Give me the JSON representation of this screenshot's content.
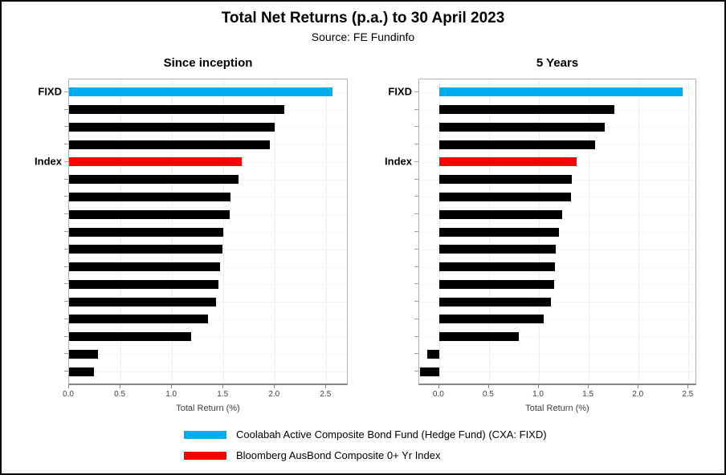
{
  "header": {
    "title": "Total Net Returns (p.a.) to 30 April 2023",
    "subtitle": "Source: FE Fundinfo"
  },
  "colors": {
    "fund_blue": "#00AEEF",
    "index_red": "#FF0000",
    "peer_black": "#000000"
  },
  "chart_data": [
    {
      "type": "bar",
      "orientation": "horizontal",
      "title": "Since inception",
      "xlabel": "Total Return (%)",
      "xlim": [
        0,
        2.7
      ],
      "xticks": [
        0.0,
        0.5,
        1.0,
        1.5,
        2.0,
        2.5
      ],
      "grid": true,
      "bars": [
        {
          "label": "FIXD",
          "value": 2.56,
          "color": "#00AEEF"
        },
        {
          "label": "",
          "value": 2.09,
          "color": "#000000"
        },
        {
          "label": "",
          "value": 2.0,
          "color": "#000000"
        },
        {
          "label": "",
          "value": 1.95,
          "color": "#000000"
        },
        {
          "label": "Index",
          "value": 1.68,
          "color": "#FF0000"
        },
        {
          "label": "",
          "value": 1.65,
          "color": "#000000"
        },
        {
          "label": "",
          "value": 1.57,
          "color": "#000000"
        },
        {
          "label": "",
          "value": 1.56,
          "color": "#000000"
        },
        {
          "label": "",
          "value": 1.5,
          "color": "#000000"
        },
        {
          "label": "",
          "value": 1.49,
          "color": "#000000"
        },
        {
          "label": "",
          "value": 1.47,
          "color": "#000000"
        },
        {
          "label": "",
          "value": 1.45,
          "color": "#000000"
        },
        {
          "label": "",
          "value": 1.43,
          "color": "#000000"
        },
        {
          "label": "",
          "value": 1.35,
          "color": "#000000"
        },
        {
          "label": "",
          "value": 1.19,
          "color": "#000000"
        },
        {
          "label": "",
          "value": 0.28,
          "color": "#000000"
        },
        {
          "label": "",
          "value": 0.24,
          "color": "#000000"
        }
      ]
    },
    {
      "type": "bar",
      "orientation": "horizontal",
      "title": "5 Years",
      "xlabel": "Total Return (%)",
      "xlim": [
        -0.2,
        2.57
      ],
      "xticks": [
        0.0,
        0.5,
        1.0,
        1.5,
        2.0,
        2.5
      ],
      "grid": true,
      "bars": [
        {
          "label": "FIXD",
          "value": 2.44,
          "color": "#00AEEF"
        },
        {
          "label": "",
          "value": 1.76,
          "color": "#000000"
        },
        {
          "label": "",
          "value": 1.66,
          "color": "#000000"
        },
        {
          "label": "",
          "value": 1.56,
          "color": "#000000"
        },
        {
          "label": "Index",
          "value": 1.38,
          "color": "#FF0000"
        },
        {
          "label": "",
          "value": 1.33,
          "color": "#000000"
        },
        {
          "label": "",
          "value": 1.32,
          "color": "#000000"
        },
        {
          "label": "",
          "value": 1.23,
          "color": "#000000"
        },
        {
          "label": "",
          "value": 1.2,
          "color": "#000000"
        },
        {
          "label": "",
          "value": 1.17,
          "color": "#000000"
        },
        {
          "label": "",
          "value": 1.16,
          "color": "#000000"
        },
        {
          "label": "",
          "value": 1.15,
          "color": "#000000"
        },
        {
          "label": "",
          "value": 1.12,
          "color": "#000000"
        },
        {
          "label": "",
          "value": 1.05,
          "color": "#000000"
        },
        {
          "label": "",
          "value": 0.8,
          "color": "#000000"
        },
        {
          "label": "",
          "value": -0.12,
          "color": "#000000"
        },
        {
          "label": "",
          "value": -0.19,
          "color": "#000000"
        }
      ]
    }
  ],
  "legend": {
    "items": [
      {
        "label": "Coolabah Active Composite Bond Fund (Hedge Fund) (CXA: FIXD)",
        "color": "#00AEEF"
      },
      {
        "label": "Bloomberg AusBond Composite 0+ Yr Index",
        "color": "#FF0000"
      }
    ]
  }
}
